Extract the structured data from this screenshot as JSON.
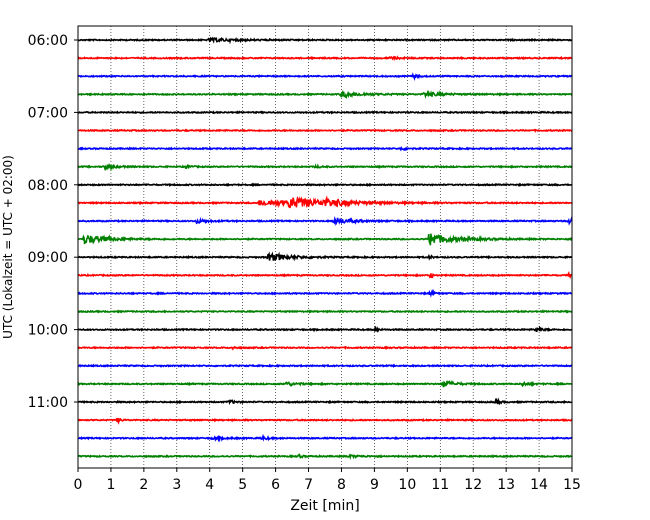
{
  "chart_data": {
    "type": "line",
    "title": "",
    "xlabel": "Zeit  [min]",
    "ylabel": "UTC (Lokalzeit = UTC + 02:00)",
    "xlim": [
      0,
      15
    ],
    "x_ticks": [
      0,
      1,
      2,
      3,
      4,
      5,
      6,
      7,
      8,
      9,
      10,
      11,
      12,
      13,
      14,
      15
    ],
    "x_tick_labels": [
      "0",
      "1",
      "2",
      "3",
      "4",
      "5",
      "6",
      "7",
      "8",
      "9",
      "10",
      "11",
      "12",
      "13",
      "14",
      "15"
    ],
    "y_tick_labels": [
      "06:00",
      "07:00",
      "08:00",
      "09:00",
      "10:00",
      "11:00"
    ],
    "trace_colors": [
      "#000000",
      "#ff0000",
      "#0000ff",
      "#008000"
    ],
    "grid_x": true,
    "grid_style": "dotted",
    "traces": [
      {
        "start": "06:00",
        "events": [
          {
            "t": 4.0,
            "amp": 0.5,
            "dur": 0.8
          }
        ]
      },
      {
        "start": "06:15",
        "events": [
          {
            "t": 9.5,
            "amp": 0.3,
            "dur": 0.3
          }
        ]
      },
      {
        "start": "06:30",
        "events": [
          {
            "t": 10.2,
            "amp": 0.7,
            "dur": 0.1
          }
        ]
      },
      {
        "start": "06:45",
        "events": [
          {
            "t": 8.0,
            "amp": 0.9,
            "dur": 0.6
          },
          {
            "t": 10.5,
            "amp": 0.6,
            "dur": 0.6
          }
        ]
      },
      {
        "start": "07:00",
        "events": []
      },
      {
        "start": "07:15",
        "events": []
      },
      {
        "start": "07:30",
        "events": [
          {
            "t": 9.8,
            "amp": 0.4,
            "dur": 0.2
          }
        ]
      },
      {
        "start": "07:45",
        "events": [
          {
            "t": 0.8,
            "amp": 0.8,
            "dur": 0.3
          },
          {
            "t": 3.3,
            "amp": 0.8,
            "dur": 0.1
          },
          {
            "t": 7.2,
            "amp": 0.3,
            "dur": 0.2
          }
        ]
      },
      {
        "start": "08:00",
        "events": []
      },
      {
        "start": "08:15",
        "events": [
          {
            "t": 5.5,
            "amp": 0.8,
            "dur": 1.8
          },
          {
            "t": 6.4,
            "amp": 1.4,
            "dur": 0.9
          },
          {
            "t": 7.5,
            "amp": 0.8,
            "dur": 0.6
          }
        ]
      },
      {
        "start": "08:30",
        "events": [
          {
            "t": 3.6,
            "amp": 0.6,
            "dur": 0.3
          },
          {
            "t": 7.8,
            "amp": 1.0,
            "dur": 0.5
          },
          {
            "t": 14.9,
            "amp": 0.8,
            "dur": 0.3
          }
        ]
      },
      {
        "start": "08:45",
        "events": [
          {
            "t": 0.2,
            "amp": 1.6,
            "dur": 0.6
          },
          {
            "t": 10.7,
            "amp": 3.2,
            "dur": 0.05
          },
          {
            "t": 10.8,
            "amp": 1.4,
            "dur": 0.8
          }
        ]
      },
      {
        "start": "09:00",
        "events": [
          {
            "t": 5.8,
            "amp": 1.3,
            "dur": 0.6
          },
          {
            "t": 10.7,
            "amp": 0.6,
            "dur": 0.05
          }
        ]
      },
      {
        "start": "09:15",
        "events": [
          {
            "t": 10.7,
            "amp": 1.4,
            "dur": 0.05
          },
          {
            "t": 14.9,
            "amp": 0.5,
            "dur": 0.2
          }
        ]
      },
      {
        "start": "09:30",
        "events": [
          {
            "t": 10.7,
            "amp": 0.8,
            "dur": 0.1
          }
        ]
      },
      {
        "start": "09:45",
        "events": []
      },
      {
        "start": "10:00",
        "events": [
          {
            "t": 9.0,
            "amp": 0.7,
            "dur": 0.1
          },
          {
            "t": 13.9,
            "amp": 0.6,
            "dur": 0.2
          }
        ]
      },
      {
        "start": "10:15",
        "events": [
          {
            "t": 4.7,
            "amp": 0.4,
            "dur": 0.1
          }
        ]
      },
      {
        "start": "10:30",
        "events": []
      },
      {
        "start": "10:45",
        "events": [
          {
            "t": 6.3,
            "amp": 0.6,
            "dur": 0.3
          },
          {
            "t": 11.1,
            "amp": 1.0,
            "dur": 0.3
          },
          {
            "t": 13.5,
            "amp": 0.6,
            "dur": 0.2
          }
        ]
      },
      {
        "start": "11:00",
        "events": [
          {
            "t": 4.6,
            "amp": 0.5,
            "dur": 0.2
          },
          {
            "t": 12.7,
            "amp": 1.0,
            "dur": 0.1
          }
        ]
      },
      {
        "start": "11:15",
        "events": [
          {
            "t": 1.2,
            "amp": 0.7,
            "dur": 0.1
          }
        ]
      },
      {
        "start": "11:30",
        "events": [
          {
            "t": 4.1,
            "amp": 0.4,
            "dur": 0.3
          },
          {
            "t": 5.6,
            "amp": 0.4,
            "dur": 0.2
          }
        ]
      },
      {
        "start": "11:45",
        "events": [
          {
            "t": 6.7,
            "amp": 0.5,
            "dur": 0.1
          },
          {
            "t": 8.2,
            "amp": 0.3,
            "dur": 0.4
          }
        ]
      }
    ]
  }
}
